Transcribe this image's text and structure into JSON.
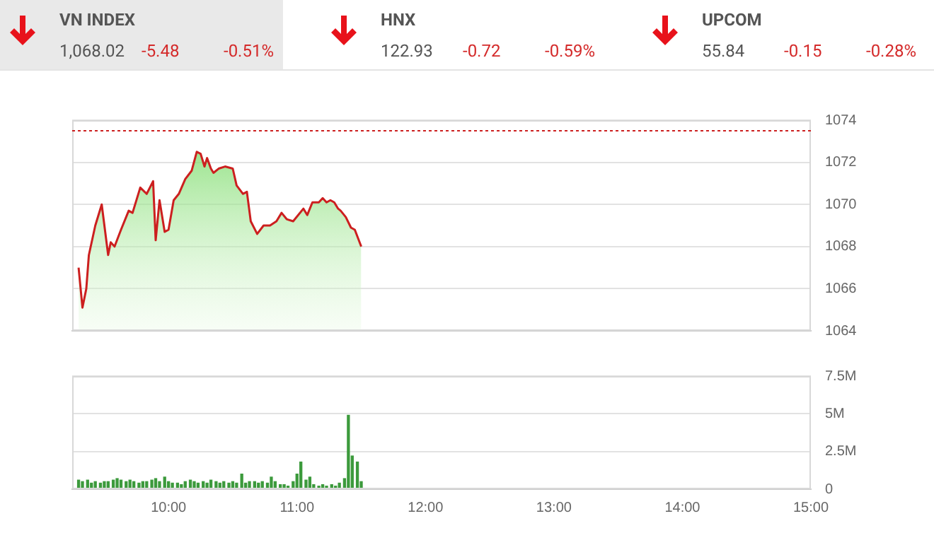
{
  "chart_data": [
    {
      "type": "other",
      "annotations": [
        "VN INDEX",
        "1,068.02",
        "-5.48",
        "-0.51%",
        "HNX",
        "122.93",
        "-0.72",
        "-0.59%",
        "UPCOM",
        "55.84",
        "-0.15",
        "-0.28%"
      ]
    },
    {
      "type": "area",
      "marker": "none",
      "grid": "y",
      "tick_labels": "y",
      "legend": false,
      "x": [
        9.3,
        9.33,
        9.36,
        9.38,
        9.43,
        9.48,
        9.53,
        9.55,
        9.58,
        9.63,
        9.69,
        9.72,
        9.78,
        9.83,
        9.88,
        9.9,
        9.93,
        9.97,
        10.0,
        10.04,
        10.08,
        10.13,
        10.18,
        10.22,
        10.25,
        10.28,
        10.3,
        10.33,
        10.35,
        10.39,
        10.44,
        10.5,
        10.53,
        10.58,
        10.61,
        10.64,
        10.69,
        10.74,
        10.79,
        10.84,
        10.88,
        10.92,
        10.97,
        11.05,
        11.08,
        11.12,
        11.17,
        11.2,
        11.23,
        11.26,
        11.29,
        11.32,
        11.34,
        11.38,
        11.42,
        11.45,
        11.5
      ],
      "series": [
        {
          "color": "#cc1f1f",
          "values": [
            1067.0,
            1065.1,
            1066.0,
            1067.6,
            1069.0,
            1070.0,
            1067.6,
            1068.2,
            1068.0,
            1068.8,
            1069.7,
            1069.6,
            1070.8,
            1070.5,
            1071.1,
            1068.3,
            1070.2,
            1068.7,
            1068.8,
            1070.2,
            1070.5,
            1071.2,
            1071.6,
            1072.5,
            1072.4,
            1071.8,
            1072.2,
            1071.7,
            1071.5,
            1071.7,
            1071.8,
            1071.7,
            1070.9,
            1070.5,
            1070.6,
            1069.2,
            1068.6,
            1069.0,
            1069.0,
            1069.2,
            1069.6,
            1069.3,
            1069.2,
            1069.8,
            1069.5,
            1070.1,
            1070.1,
            1070.3,
            1070.1,
            1070.2,
            1070.1,
            1069.8,
            1069.7,
            1069.4,
            1068.9,
            1068.8,
            1068.0
          ]
        }
      ],
      "xlim": [
        9.25,
        15
      ],
      "ylim": [
        1064,
        1074
      ],
      "yticks": [
        1064,
        1066,
        1068,
        1070,
        1072,
        1074
      ],
      "ref_lines": [
        {
          "axis": "y",
          "value": 1073.5,
          "color": "#cc1f1f",
          "line_style": "dotted"
        }
      ]
    },
    {
      "type": "bar",
      "grid": "y",
      "legend": false,
      "x": [
        9.3,
        9.33,
        9.37,
        9.4,
        9.43,
        9.47,
        9.5,
        9.53,
        9.57,
        9.6,
        9.63,
        9.67,
        9.7,
        9.73,
        9.77,
        9.8,
        9.83,
        9.87,
        9.9,
        9.93,
        9.97,
        10.0,
        10.03,
        10.07,
        10.1,
        10.13,
        10.17,
        10.2,
        10.23,
        10.27,
        10.3,
        10.33,
        10.37,
        10.4,
        10.43,
        10.47,
        10.5,
        10.53,
        10.57,
        10.6,
        10.63,
        10.67,
        10.7,
        10.73,
        10.77,
        10.8,
        10.83,
        10.87,
        10.9,
        10.93,
        10.97,
        11.0,
        11.03,
        11.07,
        11.1,
        11.13,
        11.17,
        11.2,
        11.23,
        11.27,
        11.3,
        11.33,
        11.37,
        11.4,
        11.43,
        11.47,
        11.5
      ],
      "series": [
        {
          "color": "#3c9a3c",
          "values": [
            600000,
            500000,
            600000,
            400000,
            500000,
            400000,
            500000,
            500000,
            600000,
            700000,
            600000,
            500000,
            600000,
            500000,
            400000,
            500000,
            500000,
            600000,
            700000,
            500000,
            800000,
            500000,
            400000,
            400000,
            300000,
            500000,
            600000,
            500000,
            400000,
            500000,
            400000,
            600000,
            500000,
            400000,
            500000,
            400000,
            500000,
            400000,
            1000000,
            400000,
            500000,
            500000,
            400000,
            500000,
            400000,
            800000,
            500000,
            300000,
            300000,
            200000,
            500000,
            1000000,
            1800000,
            600000,
            800000,
            300000,
            200000,
            300000,
            200000,
            300000,
            200000,
            400000,
            700000,
            4900000,
            2200000,
            1800000,
            500000
          ]
        }
      ],
      "xlim": [
        9.25,
        15
      ],
      "xticks": [
        {
          "value": 10,
          "label": "10:00"
        },
        {
          "value": 11,
          "label": "11:00"
        },
        {
          "value": 12,
          "label": "12:00"
        },
        {
          "value": 13,
          "label": "13:00"
        },
        {
          "value": 14,
          "label": "14:00"
        },
        {
          "value": 15,
          "label": "15:00"
        }
      ],
      "ylim": [
        0,
        7500000
      ],
      "yticks": [
        0,
        {
          "value": 2500000,
          "label": "2.5M"
        },
        {
          "value": 5000000,
          "label": "5M"
        },
        {
          "value": 7500000,
          "label": "7.5M"
        }
      ]
    }
  ]
}
